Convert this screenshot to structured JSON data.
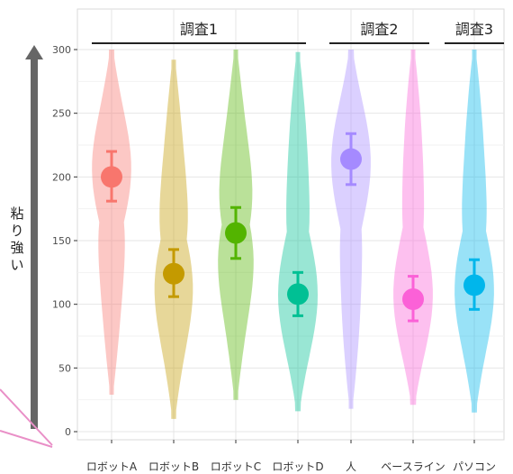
{
  "chart_data": {
    "type": "violin",
    "ylabel": "粘り強い",
    "ylim": [
      0,
      300
    ],
    "yticks": [
      0,
      50,
      100,
      150,
      200,
      250,
      300
    ],
    "grid": true,
    "groups": [
      {
        "label": "調査1",
        "members": [
          "ロボットA",
          "ロボットB",
          "ロボットC",
          "ロボットD"
        ]
      },
      {
        "label": "調査2",
        "members": [
          "人",
          "ベースライン"
        ]
      },
      {
        "label": "調査3",
        "members": [
          "パソコン"
        ]
      }
    ],
    "categories": [
      "ロボットA",
      "ロボットB",
      "ロボットC",
      "ロボットD",
      "人",
      "ベースライン",
      "パソコン"
    ],
    "series": [
      {
        "category": "ロボットA",
        "color": "#F8766D",
        "mean": 200,
        "ci": [
          181,
          220
        ],
        "range": [
          29,
          300
        ]
      },
      {
        "category": "ロボットB",
        "color": "#C49A00",
        "mean": 124,
        "ci": [
          106,
          143
        ],
        "range": [
          10,
          292
        ]
      },
      {
        "category": "ロボットC",
        "color": "#53B400",
        "mean": 156,
        "ci": [
          136,
          176
        ],
        "range": [
          25,
          300
        ]
      },
      {
        "category": "ロボットD",
        "color": "#00C094",
        "mean": 108,
        "ci": [
          91,
          125
        ],
        "range": [
          16,
          298
        ]
      },
      {
        "category": "人",
        "color": "#A58AFF",
        "mean": 214,
        "ci": [
          194,
          234
        ],
        "range": [
          18,
          300
        ]
      },
      {
        "category": "ベースライン",
        "color": "#FB61D7",
        "mean": 104,
        "ci": [
          87,
          122
        ],
        "range": [
          21,
          300
        ]
      },
      {
        "category": "パソコン",
        "color": "#00B6EB",
        "mean": 115,
        "ci": [
          96,
          135
        ],
        "range": [
          15,
          300
        ]
      }
    ]
  }
}
